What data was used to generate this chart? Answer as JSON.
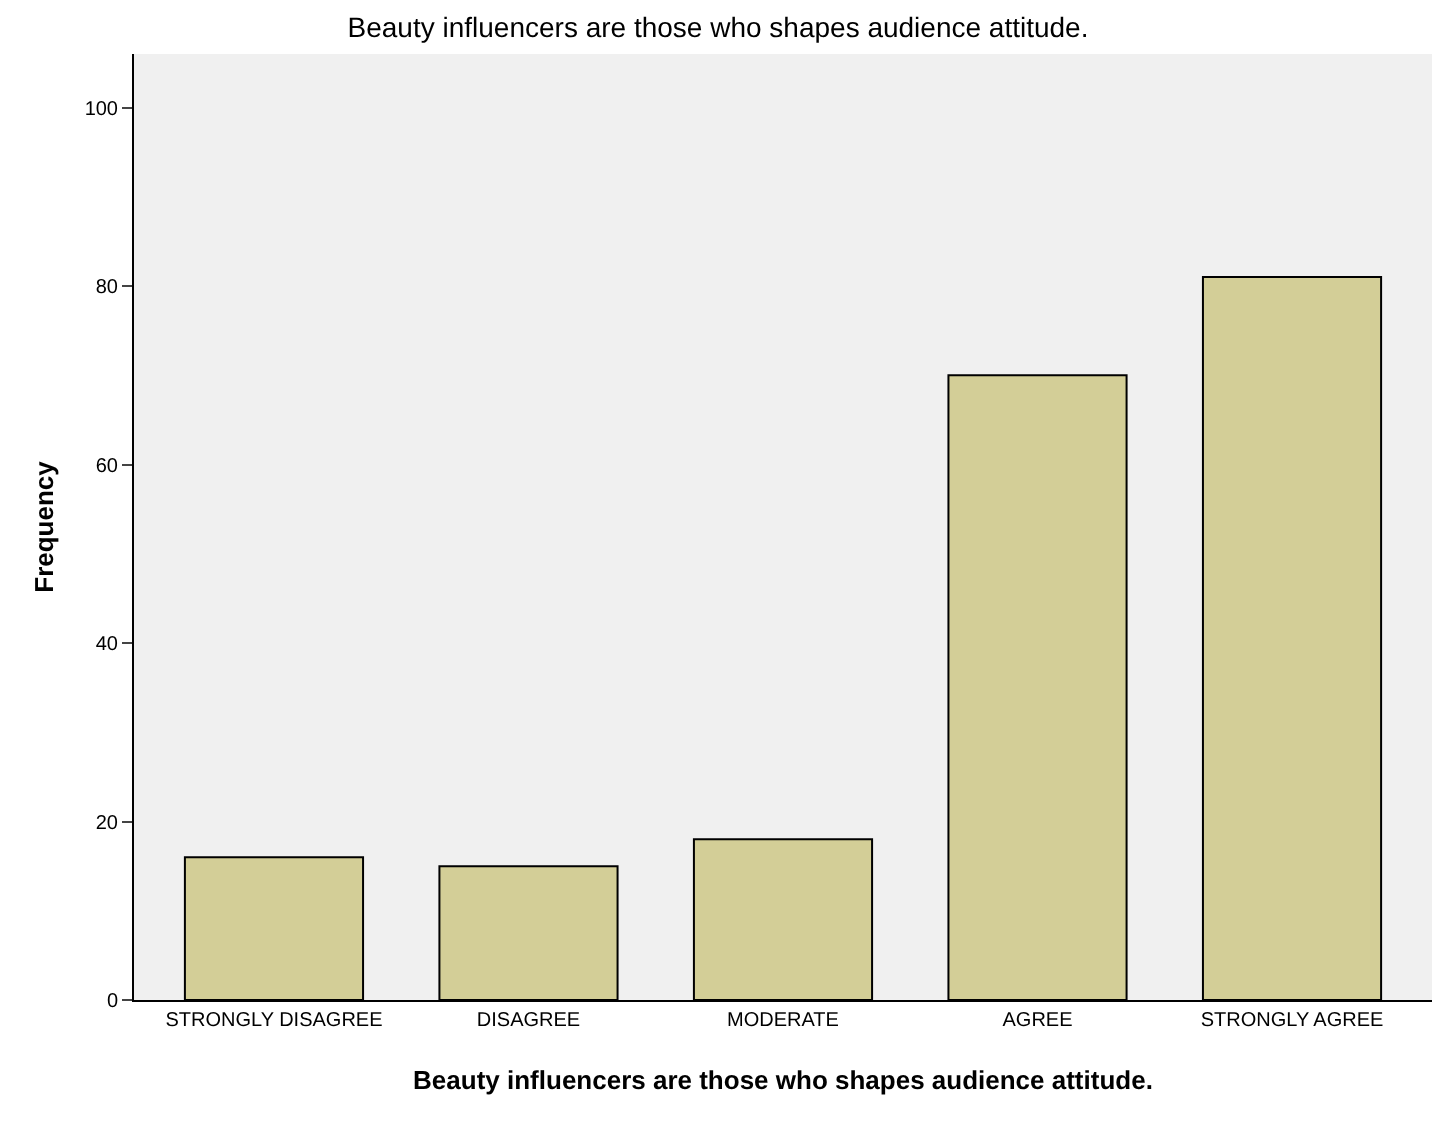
{
  "chart_data": {
    "type": "bar",
    "title": "Beauty influencers are those who shapes audience attitude.",
    "xlabel": "Beauty influencers are those who shapes audience attitude.",
    "ylabel": "Frequency",
    "categories": [
      "STRONGLY DISAGREE",
      "DISAGREE",
      "MODERATE",
      "AGREE",
      "STRONGLY AGREE"
    ],
    "values": [
      16,
      15,
      18,
      70,
      81
    ],
    "color": "#d3ce97",
    "ylim": [
      0,
      106
    ],
    "yticks": [
      0,
      20,
      40,
      60,
      80,
      100
    ],
    "grid": false,
    "legend": false
  }
}
